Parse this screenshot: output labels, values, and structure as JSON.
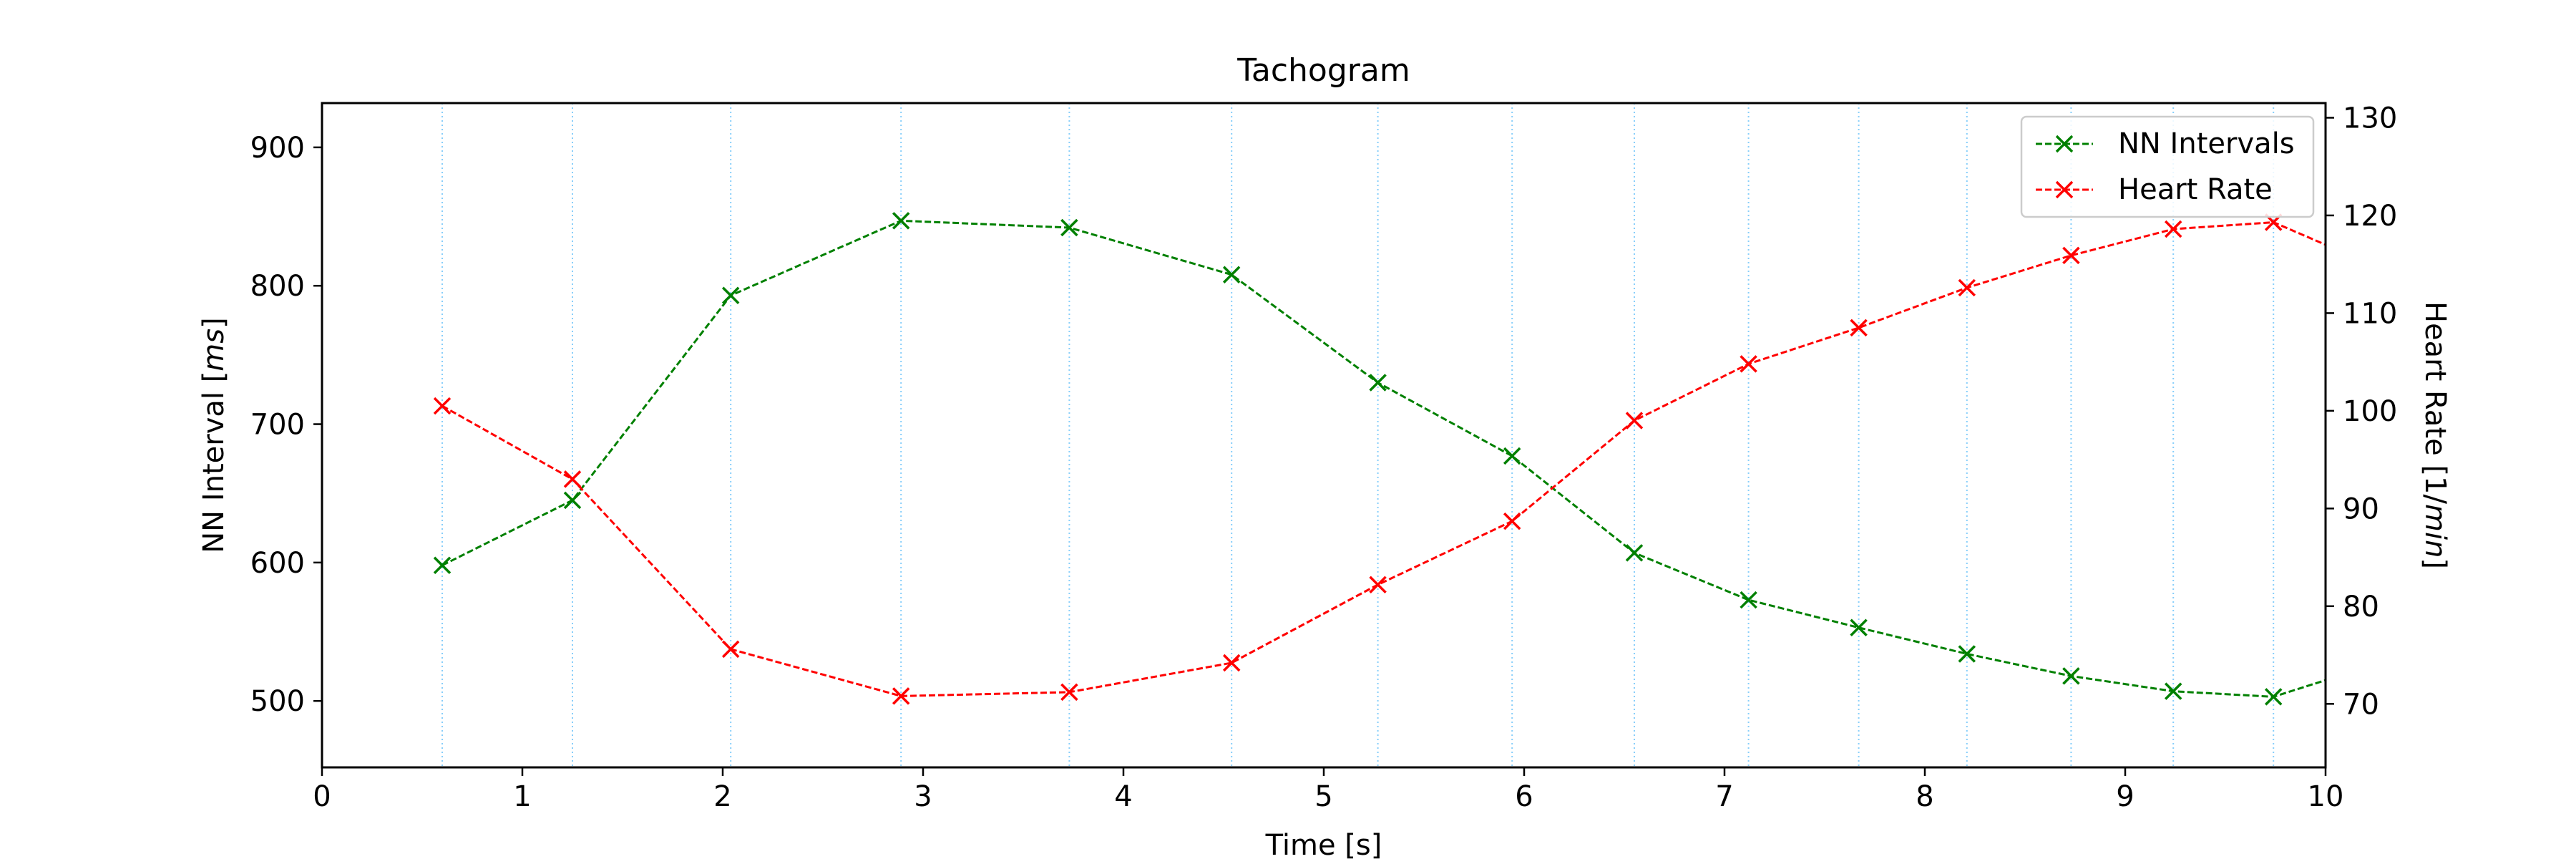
{
  "chart_data": {
    "type": "line",
    "title": "Tachogram",
    "xlabel": "Time [s]",
    "ylabel_left": "NN Interval [",
    "ylabel_left_unit": "ms",
    "ylabel_left_end": "]",
    "ylabel_right": "Heart Rate [1/",
    "ylabel_right_unit": "min",
    "ylabel_right_end": "]",
    "xlim": [
      0,
      10
    ],
    "ylim_left": [
      452,
      932
    ],
    "ylim_right": [
      63.5,
      131.5
    ],
    "x_ticks": [
      0,
      1,
      2,
      3,
      4,
      5,
      6,
      7,
      8,
      9,
      10
    ],
    "y_ticks_left": [
      500,
      600,
      700,
      800,
      900
    ],
    "y_ticks_right": [
      70,
      80,
      90,
      100,
      110,
      120,
      130
    ],
    "beat_times": [
      0.6,
      1.25,
      2.04,
      2.89,
      3.73,
      4.54,
      5.27,
      5.94,
      6.55,
      7.12,
      7.67,
      8.21,
      8.73,
      9.24,
      9.74
    ],
    "grid": "vertical dotted lines at each beat time",
    "legend_position": "top-right",
    "series": [
      {
        "name": "NN Intervals",
        "axis": "left",
        "color": "#008000",
        "marker": "x",
        "linestyle": "dashed",
        "x": [
          0.6,
          1.25,
          2.04,
          2.89,
          3.73,
          4.54,
          5.27,
          5.94,
          6.55,
          7.12,
          7.67,
          8.21,
          8.73,
          9.24,
          9.74,
          10.0
        ],
        "y": [
          598,
          645,
          793,
          847,
          842,
          808,
          730,
          677,
          607,
          573,
          553,
          534,
          518,
          507,
          503,
          515
        ]
      },
      {
        "name": "Heart Rate",
        "axis": "right",
        "color": "#ff0000",
        "marker": "x",
        "linestyle": "dashed",
        "x": [
          0.6,
          1.25,
          2.04,
          2.89,
          3.73,
          4.54,
          5.27,
          5.94,
          6.55,
          7.12,
          7.67,
          8.21,
          8.73,
          9.24,
          9.74,
          10.0
        ],
        "y": [
          100.5,
          93.0,
          75.6,
          70.8,
          71.2,
          74.2,
          82.2,
          88.7,
          99.0,
          104.8,
          108.5,
          112.6,
          115.9,
          118.6,
          119.3,
          117.0
        ]
      }
    ]
  }
}
